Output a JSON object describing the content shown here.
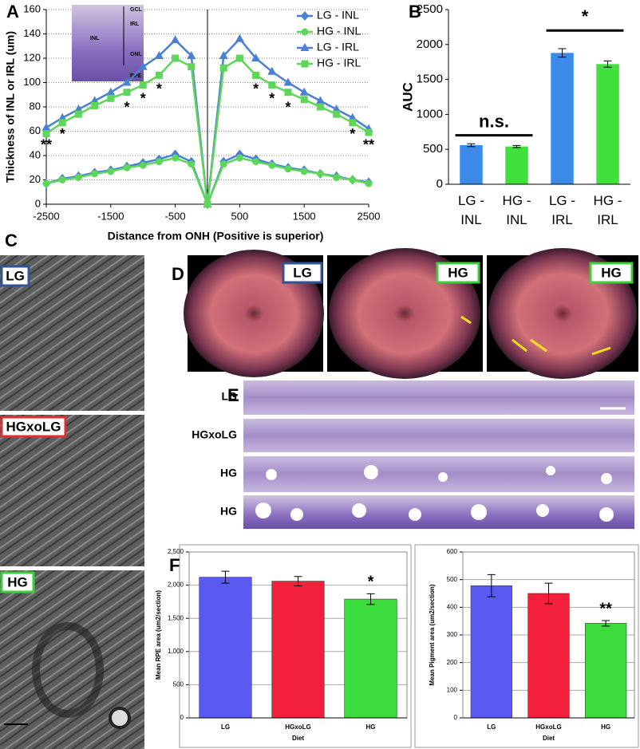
{
  "panel_labels": [
    "A",
    "B",
    "C",
    "D",
    "E",
    "F"
  ],
  "panel_c": {
    "labels": [
      "LG",
      "HGxoLG",
      "HG"
    ]
  },
  "panel_d": {
    "labels": [
      "LG",
      "HG",
      "HG"
    ]
  },
  "panel_e": {
    "labels": [
      "LG",
      "HGxoLG",
      "HG",
      "HG"
    ]
  },
  "chart_data": [
    {
      "type": "line",
      "xlabel": "Distance from ONH (Positive is superior)",
      "ylabel": "Thickness of INL or IRL (um)",
      "x": [
        -2500,
        -2250,
        -2000,
        -1750,
        -1500,
        -1250,
        -1000,
        -750,
        -500,
        -250,
        0,
        250,
        500,
        750,
        1000,
        1250,
        1500,
        1750,
        2000,
        2250,
        2500
      ],
      "xlim": [
        -2500,
        2500
      ],
      "xticks": [
        -2500,
        -1500,
        -500,
        500,
        1500,
        2500
      ],
      "ylim": [
        0,
        160
      ],
      "yticks": [
        0,
        20,
        40,
        60,
        80,
        100,
        120,
        140,
        160
      ],
      "grid": true,
      "legend": "upper right",
      "series": [
        {
          "name": "LG - INL",
          "color": "#4a7fd6",
          "marker": "diamond",
          "values": [
            17,
            21,
            23,
            26,
            28,
            31,
            34,
            37,
            41,
            35,
            0,
            35,
            41,
            37,
            33,
            30,
            28,
            25,
            23,
            20,
            18
          ]
        },
        {
          "name": "HG - INL",
          "color": "#5ed65a",
          "marker": "circle",
          "values": [
            17,
            20,
            22,
            25,
            27,
            30,
            32,
            35,
            38,
            33,
            0,
            33,
            38,
            35,
            32,
            29,
            27,
            25,
            22,
            20,
            17
          ]
        },
        {
          "name": "LG - IRL",
          "color": "#4a7fd6",
          "marker": "triangle",
          "values": [
            63,
            71,
            78,
            85,
            92,
            100,
            113,
            122,
            135,
            122,
            0,
            122,
            136,
            120,
            109,
            100,
            92,
            85,
            78,
            71,
            62
          ]
        },
        {
          "name": "HG - IRL",
          "color": "#5ed65a",
          "marker": "square",
          "values": [
            58,
            67,
            74,
            81,
            87,
            92,
            98,
            106,
            120,
            113,
            0,
            112,
            120,
            106,
            98,
            92,
            86,
            80,
            74,
            67,
            59
          ]
        }
      ],
      "annotations": [
        {
          "text": "**",
          "x": -2500,
          "y": 48
        },
        {
          "text": "*",
          "x": -2250,
          "y": 57
        },
        {
          "text": "*",
          "x": -1250,
          "y": 79
        },
        {
          "text": "*",
          "x": -1000,
          "y": 86
        },
        {
          "text": "*",
          "x": -750,
          "y": 94
        },
        {
          "text": "*",
          "x": 750,
          "y": 94
        },
        {
          "text": "*",
          "x": 1000,
          "y": 86
        },
        {
          "text": "*",
          "x": 1250,
          "y": 79
        },
        {
          "text": "*",
          "x": 2250,
          "y": 57
        },
        {
          "text": "**",
          "x": 2500,
          "y": 48
        }
      ],
      "inset_labels": [
        "GCL",
        "IRL",
        "INL",
        "ONL",
        "RPE"
      ]
    },
    {
      "type": "bar",
      "ylabel": "AUC",
      "categories": [
        "LG - INL",
        "HG - INL",
        "LG - IRL",
        "HG - IRL"
      ],
      "values": [
        560,
        540,
        1880,
        1720
      ],
      "errors": [
        20,
        15,
        60,
        45
      ],
      "colors": [
        "#3d8be8",
        "#41e03c",
        "#3d8be8",
        "#41e03c"
      ],
      "ylim": [
        0,
        2500
      ],
      "yticks": [
        0,
        500,
        1000,
        1500,
        2000,
        2500
      ],
      "grid": false,
      "brackets": [
        {
          "text": "n.s.",
          "from": 0,
          "to": 1,
          "y": 700
        },
        {
          "text": "*",
          "from": 2,
          "to": 3,
          "y": 2200
        }
      ]
    },
    {
      "type": "bar",
      "ylabel": "Mean RPE area (um2/section)",
      "xlabel": "Diet",
      "categories": [
        "LG",
        "HGxoLG",
        "HG"
      ],
      "values": [
        2120,
        2060,
        1790
      ],
      "errors": [
        90,
        70,
        80
      ],
      "colors": [
        "#5a5af0",
        "#f2203c",
        "#3ddc3d"
      ],
      "ylim": [
        0,
        2500
      ],
      "yticks": [
        0,
        500,
        {
          "value": 1000,
          "label": "1,000"
        },
        {
          "value": 1500,
          "label": "1,500"
        },
        {
          "value": 2000,
          "label": "2,000"
        },
        {
          "value": 2500,
          "label": "2,500"
        }
      ],
      "grid": true,
      "annotations": [
        {
          "text": "*",
          "category": 2
        }
      ]
    },
    {
      "type": "bar",
      "ylabel": "Mean Pigment area (um2/section)",
      "xlabel": "Diet",
      "categories": [
        "LG",
        "HGxoLG",
        "HG"
      ],
      "values": [
        478,
        450,
        342
      ],
      "errors": [
        40,
        37,
        10
      ],
      "colors": [
        "#5a5af0",
        "#f2203c",
        "#3ddc3d"
      ],
      "ylim": [
        0,
        600
      ],
      "yticks": [
        0,
        100,
        200,
        300,
        400,
        500,
        600
      ],
      "grid": true,
      "annotations": [
        {
          "text": "**",
          "category": 2
        }
      ]
    }
  ]
}
